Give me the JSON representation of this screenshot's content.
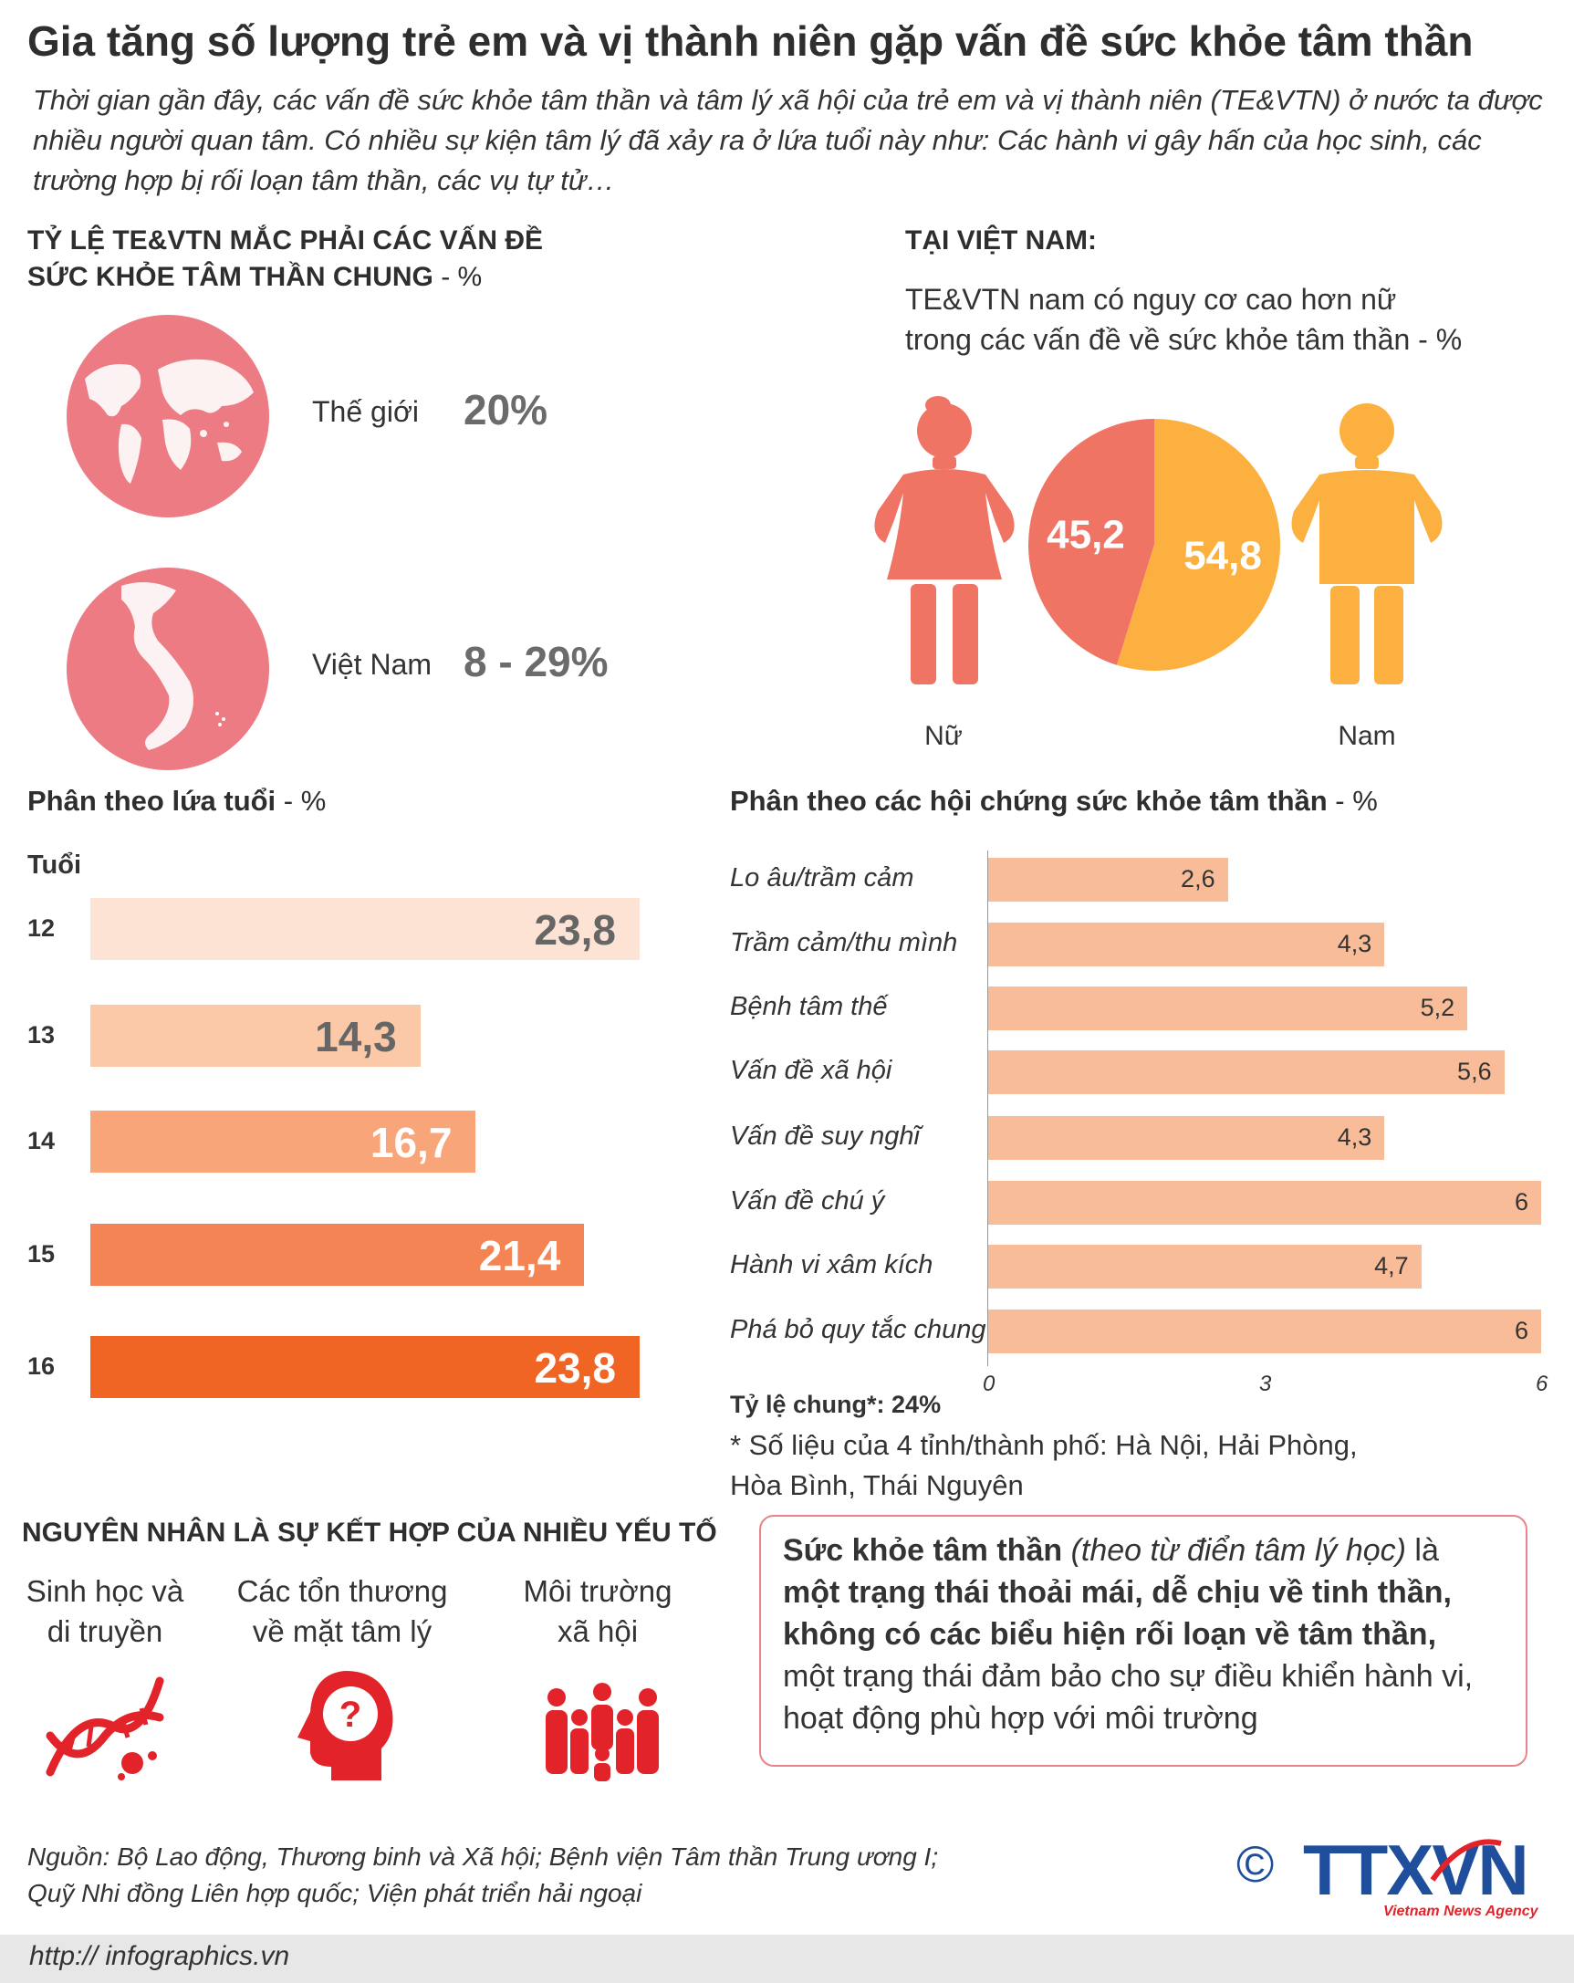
{
  "title": "Gia tăng số lượng trẻ em và vị thành niên gặp vấn đề sức khỏe tâm thần",
  "intro": "Thời gian gần đây, các vấn đề sức khỏe tâm thần và tâm lý xã hội của trẻ em và vị thành niên (TE&VTN) ở nước ta được nhiều người quan tâm. Có nhiều sự kiện tâm lý đã xảy ra ở lứa tuổi này như: Các hành vi gây hấn của học sinh, các trường hợp bị rối loạn tâm thần, các vụ tự tử…",
  "prevalence": {
    "heading_line1": "TỶ LỆ TE&VTN MẮC PHẢI CÁC VẤN ĐỀ",
    "heading_line2": "SỨC KHỎE TÂM THẦN CHUNG",
    "unit": " - %",
    "items": [
      {
        "label": "Thế giới",
        "value": "20%",
        "icon": "world-map-icon"
      },
      {
        "label": "Việt Nam",
        "value": "8 - 29%",
        "icon": "vietnam-map-icon"
      }
    ]
  },
  "vietnam": {
    "heading": "TẠI VIỆT NAM:",
    "subtitle_line1": "TE&VTN nam có nguy cơ cao hơn nữ",
    "subtitle_line2": "trong các vấn đề về sức khỏe tâm thần",
    "unit": " - %",
    "female_label": "Nữ",
    "male_label": "Nam",
    "female_color": "#f07464",
    "male_color": "#fbb040"
  },
  "age_section": {
    "heading": "Phân theo lứa tuổi",
    "unit": " - %",
    "axis_label": "Tuổi"
  },
  "syndrome_section": {
    "heading": "Phân theo các hội chứng sức khỏe tâm thần",
    "unit": " - %",
    "overall_label": "Tỷ lệ chung*:",
    "overall_value": "24%",
    "note_line1": "* Số liệu của 4 tỉnh/thành phố: Hà Nội, Hải Phòng,",
    "note_line2": "Hòa Bình, Thái Nguyên"
  },
  "chart_data": [
    {
      "type": "pie",
      "title": "TE&VTN nam có nguy cơ cao hơn nữ trong các vấn đề về sức khỏe tâm thần - %",
      "categories": [
        "Nữ",
        "Nam"
      ],
      "values": [
        45.2,
        54.8
      ],
      "labels": [
        "45,2",
        "54,8"
      ],
      "colors": [
        "#f07464",
        "#fbb040"
      ]
    },
    {
      "type": "bar",
      "orientation": "horizontal",
      "title": "Phân theo lứa tuổi - %",
      "ylabel": "Tuổi",
      "categories": [
        "12",
        "13",
        "14",
        "15",
        "16"
      ],
      "values": [
        23.8,
        14.3,
        16.7,
        21.4,
        23.8
      ],
      "labels": [
        "23,8",
        "14,3",
        "16,7",
        "21,4",
        "23,8"
      ],
      "colors": [
        "#fde3d4",
        "#fbc9a8",
        "#f9a57a",
        "#f48453",
        "#f06524"
      ],
      "label_colors": [
        "#666666",
        "#666666",
        "#ffffff",
        "#ffffff",
        "#ffffff"
      ],
      "xlim": [
        0,
        23.8
      ]
    },
    {
      "type": "bar",
      "orientation": "horizontal",
      "title": "Phân theo các hội chứng sức khỏe tâm thần - %",
      "categories": [
        "Lo âu/trầm cảm",
        "Trầm cảm/thu mình",
        "Bệnh tâm thế",
        "Vấn đề xã hội",
        "Vấn đề suy nghĩ",
        "Vấn đề chú ý",
        "Hành vi xâm kích",
        "Phá bỏ quy tắc chung"
      ],
      "values": [
        2.6,
        4.3,
        5.2,
        5.6,
        4.3,
        6,
        4.7,
        6
      ],
      "labels": [
        "2,6",
        "4,3",
        "5,2",
        "5,6",
        "4,3",
        "6",
        "4,7",
        "6"
      ],
      "xlim": [
        0,
        6
      ],
      "xticks": [
        "0",
        "3",
        "6"
      ]
    }
  ],
  "causes": {
    "heading": "NGUYÊN NHÂN LÀ SỰ KẾT HỢP CỦA NHIỀU YẾU TỐ",
    "items": [
      {
        "line1": "Sinh học và",
        "line2": "di truyền",
        "icon": "dna-icon"
      },
      {
        "line1": "Các tổn thương",
        "line2": "về mặt tâm lý",
        "icon": "head-question-icon"
      },
      {
        "line1": "Môi trường",
        "line2": "xã hội",
        "icon": "people-group-icon"
      }
    ]
  },
  "definition": {
    "term": "Sức khỏe tâm thần",
    "source": " (theo từ điển tâm lý học)",
    "is": " là",
    "bold_line1": "một trạng thái thoải mái, dễ chịu về tinh thần,",
    "bold_line2": "không có các biểu hiện rối loạn về tâm thần,",
    "line3": "một trạng thái đảm bảo cho sự điều khiển hành vi,",
    "line4": "hoạt động phù hợp với môi trường"
  },
  "source": {
    "line1": "Nguồn: Bộ Lao động, Thương binh và Xã hội; Bệnh viện Tâm thần Trung ương I;",
    "line2": "Quỹ Nhi đồng Liên hợp quốc; Viện phát triển hải ngoại"
  },
  "logo": {
    "copyright": "©",
    "name": "TTXVN",
    "tagline": "Vietnam News Agency"
  },
  "footer_url": "http:// infographics.vn"
}
